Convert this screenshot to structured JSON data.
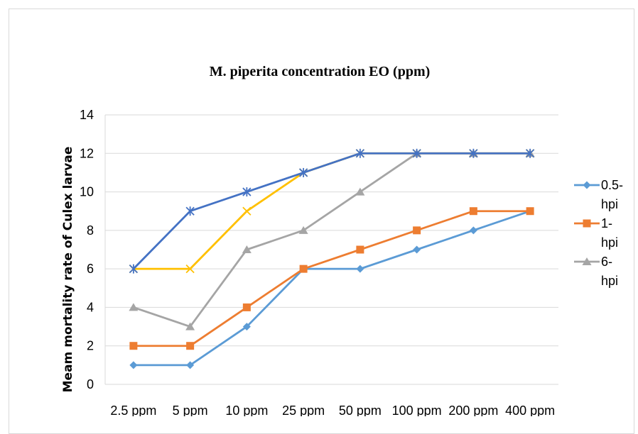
{
  "chart_data": {
    "type": "line",
    "title": "M. piperita concentration EO (ppm)",
    "xlabel": "",
    "ylabel": "Meam mortality rate of Culex larvae",
    "categories": [
      "2.5 ppm",
      "5 ppm",
      "10 ppm",
      "25 ppm",
      "50 ppm",
      "100 ppm",
      "200 ppm",
      "400 ppm"
    ],
    "ylim": [
      0,
      14
    ],
    "yticks": [
      0,
      2,
      4,
      6,
      8,
      10,
      12,
      14
    ],
    "grid": true,
    "legend_position": "right",
    "legend_labels": [
      "0.5-\nhpi",
      "1-\nhpi",
      "6-\nhpi"
    ],
    "series": [
      {
        "name": "0.5-hpi",
        "color": "#5b9bd5",
        "marker": "diamond",
        "values": [
          1,
          1,
          3,
          6,
          6,
          7,
          8,
          9
        ],
        "in_legend": true
      },
      {
        "name": "1-hpi",
        "color": "#ed7d31",
        "marker": "square",
        "values": [
          2,
          2,
          4,
          6,
          7,
          8,
          9,
          9
        ],
        "in_legend": true
      },
      {
        "name": "6-hpi",
        "color": "#a5a5a5",
        "marker": "triangle",
        "values": [
          4,
          3,
          7,
          8,
          10,
          12,
          12,
          12
        ],
        "in_legend": true
      },
      {
        "color": "#ffc000",
        "marker": "x",
        "values": [
          6,
          6,
          9,
          11,
          12,
          12,
          12,
          12
        ],
        "in_legend": false
      },
      {
        "color": "#4472c4",
        "marker": "star",
        "values": [
          6,
          9,
          10,
          11,
          12,
          12,
          12,
          12
        ],
        "in_legend": false
      }
    ]
  }
}
